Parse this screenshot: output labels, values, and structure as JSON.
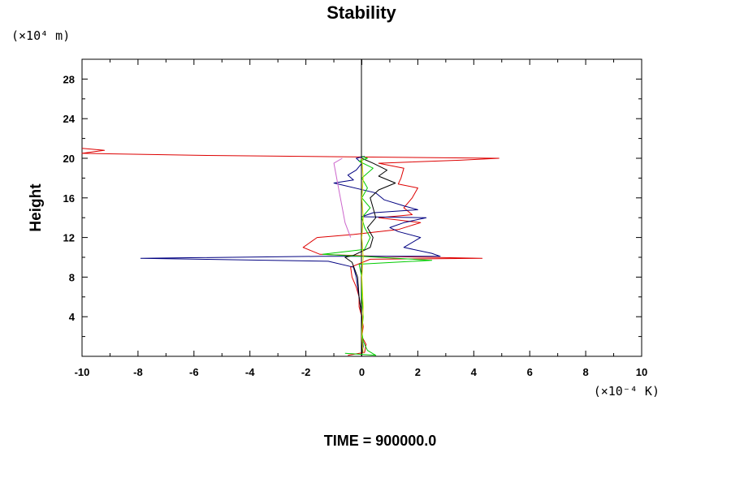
{
  "chart_data": {
    "type": "line",
    "title": "Stability",
    "ylabel": "Height",
    "xlabel": "",
    "y_unit": "(×10⁴ m)",
    "x_unit": "(×10⁻⁴ K)",
    "footer": "TIME = 900000.0",
    "xlim": [
      -10,
      10
    ],
    "ylim": [
      0,
      30
    ],
    "x_ticks": [
      -10,
      -8,
      -6,
      -4,
      -2,
      0,
      2,
      4,
      6,
      8,
      10
    ],
    "y_ticks": [
      4,
      8,
      12,
      16,
      20,
      24,
      28
    ],
    "grid": false,
    "legend": "none",
    "series": [
      {
        "color": "#dd0000",
        "points": [
          [
            -0.5,
            0.1
          ],
          [
            0.1,
            0.4
          ],
          [
            0.15,
            1.2
          ],
          [
            0.0,
            2.0
          ],
          [
            0.05,
            3.0
          ],
          [
            0.0,
            4.0
          ],
          [
            -0.1,
            5.0
          ],
          [
            -0.1,
            6.0
          ],
          [
            -0.2,
            7.0
          ],
          [
            -0.35,
            8.0
          ],
          [
            -0.4,
            9.0
          ],
          [
            0.3,
            9.8
          ],
          [
            4.3,
            9.9
          ],
          [
            0.5,
            10.1
          ],
          [
            -1.5,
            10.3
          ],
          [
            -2.1,
            11.0
          ],
          [
            -1.6,
            12.0
          ],
          [
            -0.3,
            12.3
          ],
          [
            1.3,
            12.8
          ],
          [
            2.1,
            13.5
          ],
          [
            0.6,
            14.0
          ],
          [
            1.8,
            14.3
          ],
          [
            1.5,
            15.0
          ],
          [
            1.8,
            16.0
          ],
          [
            2.0,
            17.0
          ],
          [
            1.3,
            17.4
          ],
          [
            1.4,
            18.0
          ],
          [
            1.5,
            19.0
          ],
          [
            0.6,
            19.5
          ],
          [
            3.5,
            19.8
          ],
          [
            4.9,
            20.0
          ],
          [
            -6.0,
            20.3
          ],
          [
            -10.0,
            20.5
          ],
          [
            -9.2,
            20.8
          ],
          [
            -10.0,
            21.0
          ]
        ]
      },
      {
        "color": "#000080",
        "points": [
          [
            0.0,
            0.2
          ],
          [
            0.05,
            1.0
          ],
          [
            0.0,
            2.0
          ],
          [
            0.0,
            3.0
          ],
          [
            0.0,
            4.0
          ],
          [
            -0.05,
            5.0
          ],
          [
            -0.1,
            6.0
          ],
          [
            -0.15,
            7.0
          ],
          [
            -0.2,
            8.0
          ],
          [
            -0.3,
            9.0
          ],
          [
            -1.2,
            9.6
          ],
          [
            -7.9,
            9.9
          ],
          [
            -1.5,
            10.1
          ],
          [
            2.8,
            10.1
          ],
          [
            2.5,
            10.4
          ],
          [
            1.5,
            11.0
          ],
          [
            2.1,
            12.0
          ],
          [
            1.3,
            12.6
          ],
          [
            1.0,
            13.0
          ],
          [
            1.5,
            13.5
          ],
          [
            2.3,
            14.0
          ],
          [
            0.0,
            14.1
          ],
          [
            0.4,
            14.5
          ],
          [
            2.0,
            14.8
          ],
          [
            1.5,
            15.2
          ],
          [
            0.8,
            15.8
          ],
          [
            0.5,
            16.5
          ],
          [
            -1.0,
            17.5
          ],
          [
            -0.3,
            17.8
          ],
          [
            -0.5,
            18.3
          ],
          [
            -0.2,
            18.8
          ],
          [
            0.0,
            19.5
          ],
          [
            -0.2,
            20.0
          ],
          [
            0.1,
            20.2
          ]
        ]
      },
      {
        "color": "#000000",
        "points": [
          [
            0.0,
            0.2
          ],
          [
            0.0,
            2.0
          ],
          [
            0.0,
            4.0
          ],
          [
            -0.1,
            6.0
          ],
          [
            -0.15,
            8.0
          ],
          [
            -0.35,
            9.5
          ],
          [
            -0.6,
            10.0
          ],
          [
            -0.3,
            10.2
          ],
          [
            0.3,
            11.0
          ],
          [
            0.4,
            12.0
          ],
          [
            0.2,
            13.0
          ],
          [
            0.5,
            14.0
          ],
          [
            0.4,
            15.0
          ],
          [
            0.3,
            16.0
          ],
          [
            0.6,
            16.8
          ],
          [
            1.2,
            17.5
          ],
          [
            0.6,
            18.2
          ],
          [
            0.9,
            18.8
          ],
          [
            0.4,
            19.5
          ],
          [
            0.0,
            20.0
          ]
        ]
      },
      {
        "color": "#00cc00",
        "points": [
          [
            -0.6,
            0.3
          ],
          [
            0.5,
            0.1
          ],
          [
            0.2,
            0.6
          ],
          [
            0.05,
            1.5
          ],
          [
            0.0,
            2.5
          ],
          [
            0.05,
            4.0
          ],
          [
            0.0,
            6.0
          ],
          [
            0.0,
            8.0
          ],
          [
            -0.1,
            9.3
          ],
          [
            2.5,
            9.7
          ],
          [
            0.6,
            10.0
          ],
          [
            -1.4,
            10.3
          ],
          [
            0.1,
            10.8
          ],
          [
            0.3,
            12.0
          ],
          [
            0.1,
            13.0
          ],
          [
            0.0,
            14.0
          ],
          [
            0.3,
            15.0
          ],
          [
            0.0,
            16.0
          ],
          [
            0.2,
            17.0
          ],
          [
            0.0,
            18.0
          ],
          [
            0.4,
            19.0
          ],
          [
            -0.1,
            19.7
          ],
          [
            0.2,
            20.0
          ],
          [
            0.0,
            20.2
          ]
        ]
      },
      {
        "color": "#dddd00",
        "points": [
          [
            0.05,
            0.3
          ],
          [
            0.0,
            2.0
          ],
          [
            0.05,
            5.0
          ],
          [
            0.0,
            8.0
          ],
          [
            0.05,
            10.0
          ],
          [
            0.0,
            12.0
          ],
          [
            0.05,
            14.0
          ],
          [
            0.0,
            16.0
          ],
          [
            0.05,
            18.0
          ],
          [
            0.0,
            20.0
          ]
        ]
      },
      {
        "color": "#cc66cc",
        "points": [
          [
            -0.4,
            12.0
          ],
          [
            -0.6,
            13.5
          ],
          [
            -0.7,
            15.0
          ],
          [
            -0.8,
            16.5
          ],
          [
            -0.9,
            18.0
          ],
          [
            -1.0,
            19.5
          ],
          [
            -0.7,
            20.0
          ]
        ]
      }
    ]
  }
}
